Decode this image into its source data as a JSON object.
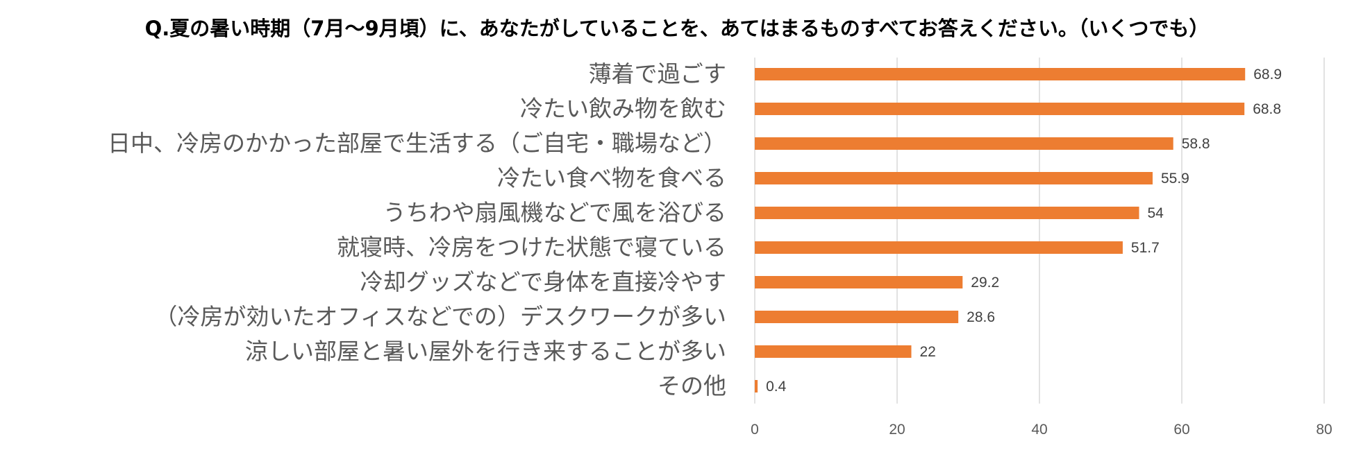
{
  "chart_data": {
    "type": "bar",
    "orientation": "horizontal",
    "title": "Q.夏の暑い時期（7月～9月頃）に、あなたがしていることを、あてはまるものすべてお答えください。（いくつでも）",
    "categories": [
      "薄着で過ごす",
      "冷たい飲み物を飲む",
      "日中、冷房のかかった部屋で生活する（ご自宅・職場など）",
      "冷たい食べ物を食べる",
      "うちわや扇風機などで風を浴びる",
      "就寝時、冷房をつけた状態で寝ている",
      "冷却グッズなどで身体を直接冷やす",
      "（冷房が効いたオフィスなどでの）デスクワークが多い",
      "涼しい部屋と暑い屋外を行き来することが多い",
      "その他"
    ],
    "values": [
      68.9,
      68.8,
      58.8,
      55.9,
      54,
      51.7,
      29.2,
      28.6,
      22,
      0.4
    ],
    "value_labels": [
      "68.9",
      "68.8",
      "58.8",
      "55.9",
      "54",
      "51.7",
      "29.2",
      "28.6",
      "22",
      "0.4"
    ],
    "xlim": [
      0,
      80
    ],
    "xticks": [
      0,
      20,
      40,
      60,
      80
    ],
    "xtick_labels": [
      "0",
      "20",
      "40",
      "60",
      "80"
    ],
    "grid": true,
    "legend": "none",
    "bar_color": "#ED7D31",
    "grid_color": "#D9D9D9"
  }
}
